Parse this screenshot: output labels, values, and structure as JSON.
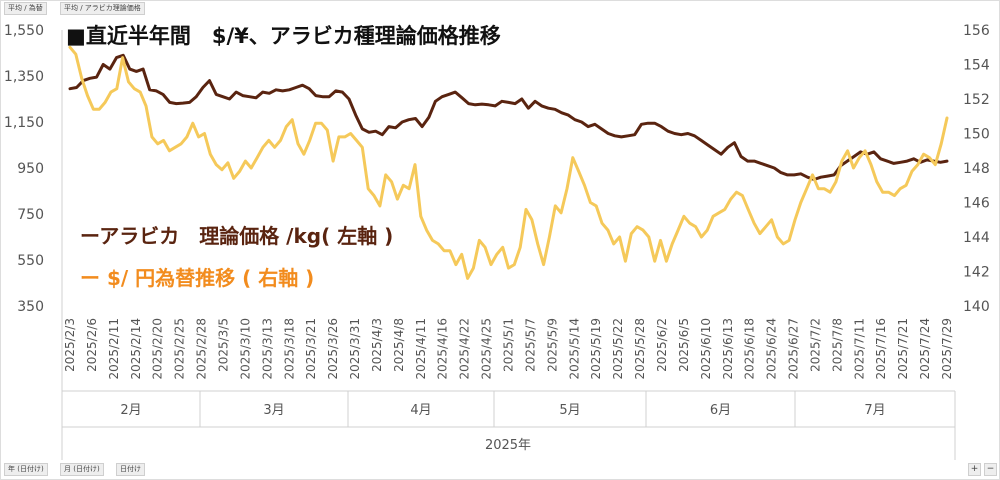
{
  "header_buttons": [
    "平均 / 為替",
    "平均 / アラビカ理論価格"
  ],
  "footer_buttons": [
    "年 (日付け)",
    "月 (日付け)",
    "日付け"
  ],
  "expand_buttons": [
    "+",
    "−"
  ],
  "chart_data": {
    "type": "line",
    "title": "■直近半年間　$/¥、アラビカ種理論価格推移",
    "legend": [
      "ーアラビカ　理論価格 /kg( 左軸 )",
      "ー $/ 円為替推移 ( 右軸 )"
    ],
    "legend_placement": "left-middle",
    "grid": false,
    "left_axis": {
      "ticks": [
        1550,
        1350,
        1150,
        950,
        750,
        550,
        350
      ],
      "tick_labels": [
        "1,550",
        "1,350",
        "1,150",
        "950",
        "750",
        "550",
        "350"
      ],
      "ylim": [
        350,
        1550
      ]
    },
    "right_axis": {
      "ticks": [
        156,
        154,
        152,
        150,
        148,
        146,
        144,
        142,
        140
      ],
      "ylim": [
        140,
        156
      ]
    },
    "x_tick_labels": [
      "2025/2/3",
      "2025/2/6",
      "2025/2/11",
      "2025/2/14",
      "2025/2/20",
      "2025/2/25",
      "2025/2/28",
      "2025/3/5",
      "2025/3/10",
      "2025/3/13",
      "2025/3/18",
      "2025/3/21",
      "2025/3/26",
      "2025/3/31",
      "2025/4/3",
      "2025/4/8",
      "2025/4/11",
      "2025/4/16",
      "2025/4/22",
      "2025/4/25",
      "2025/5/1",
      "2025/5/7",
      "2025/5/9",
      "2025/5/14",
      "2025/5/19",
      "2025/5/22",
      "2025/5/28",
      "2025/6/2",
      "2025/6/5",
      "2025/6/10",
      "2025/6/13",
      "2025/6/18",
      "2025/6/24",
      "2025/6/27",
      "2025/7/2",
      "2025/7/8",
      "2025/7/11",
      "2025/7/16",
      "2025/7/21",
      "2025/7/24",
      "2025/7/29"
    ],
    "months": [
      "2月",
      "3月",
      "4月",
      "5月",
      "6月",
      "7月"
    ],
    "year": "2025年",
    "series": [
      {
        "name": "アラビカ　理論価格 /kg",
        "axis": "left",
        "color": "#5a2410",
        "values": [
          1295,
          1300,
          1330,
          1340,
          1345,
          1400,
          1380,
          1430,
          1440,
          1380,
          1370,
          1380,
          1290,
          1285,
          1270,
          1235,
          1230,
          1232,
          1235,
          1260,
          1300,
          1330,
          1270,
          1260,
          1250,
          1280,
          1265,
          1260,
          1255,
          1280,
          1275,
          1290,
          1285,
          1290,
          1300,
          1310,
          1295,
          1265,
          1260,
          1260,
          1285,
          1280,
          1250,
          1180,
          1120,
          1105,
          1110,
          1095,
          1130,
          1125,
          1150,
          1160,
          1165,
          1130,
          1170,
          1240,
          1260,
          1270,
          1280,
          1255,
          1230,
          1225,
          1228,
          1225,
          1220,
          1240,
          1235,
          1230,
          1250,
          1210,
          1240,
          1220,
          1210,
          1205,
          1190,
          1180,
          1160,
          1150,
          1130,
          1140,
          1120,
          1100,
          1090,
          1085,
          1090,
          1095,
          1140,
          1145,
          1145,
          1130,
          1110,
          1100,
          1095,
          1100,
          1090,
          1070,
          1050,
          1030,
          1010,
          1040,
          1060,
          1000,
          980,
          980,
          970,
          960,
          950,
          930,
          920,
          920,
          925,
          910,
          900,
          910,
          915,
          920,
          960,
          980,
          1000,
          1020,
          1010,
          1020,
          990,
          980,
          970,
          975,
          980,
          990,
          975,
          985,
          980,
          975,
          980
        ]
      },
      {
        "name": "$/円為替推移",
        "axis": "right",
        "color": "#f5c95a",
        "values": [
          155.0,
          154.6,
          153.2,
          152.2,
          151.4,
          151.4,
          151.8,
          152.4,
          152.6,
          154.4,
          153.0,
          152.6,
          152.4,
          151.6,
          149.8,
          149.4,
          149.6,
          149.0,
          149.2,
          149.4,
          149.8,
          150.6,
          149.8,
          150.0,
          148.8,
          148.2,
          147.9,
          148.3,
          147.4,
          147.8,
          148.4,
          148.0,
          148.6,
          149.2,
          149.6,
          149.2,
          149.6,
          150.4,
          150.8,
          149.4,
          148.8,
          149.6,
          150.6,
          150.6,
          150.2,
          148.4,
          149.8,
          149.8,
          150.0,
          149.6,
          149.2,
          146.8,
          146.4,
          145.8,
          147.6,
          147.2,
          146.2,
          147.0,
          146.8,
          148.2,
          145.2,
          144.4,
          143.8,
          143.6,
          143.2,
          143.2,
          142.4,
          143.0,
          141.6,
          142.2,
          143.8,
          143.4,
          142.4,
          143.0,
          143.4,
          142.2,
          142.4,
          143.4,
          145.6,
          145.0,
          143.6,
          142.4,
          144.0,
          145.8,
          145.4,
          146.8,
          148.6,
          147.8,
          147.0,
          146.0,
          145.8,
          144.8,
          144.4,
          143.6,
          144.0,
          142.6,
          144.2,
          144.6,
          144.4,
          144.0,
          142.6,
          143.8,
          142.6,
          143.6,
          144.4,
          145.2,
          144.8,
          144.6,
          144.0,
          144.4,
          145.2,
          145.4,
          145.6,
          146.2,
          146.6,
          146.4,
          145.6,
          144.8,
          144.2,
          144.6,
          145.0,
          144.0,
          143.6,
          143.8,
          145.0,
          146.0,
          146.8,
          147.6,
          146.8,
          146.8,
          146.6,
          147.2,
          148.4,
          149.0,
          148.0,
          148.6,
          149.0,
          148.2,
          147.2,
          146.6,
          146.6,
          146.4,
          146.8,
          147.0,
          147.8,
          148.2,
          148.8,
          148.6,
          148.2,
          149.4,
          150.9
        ]
      }
    ]
  }
}
